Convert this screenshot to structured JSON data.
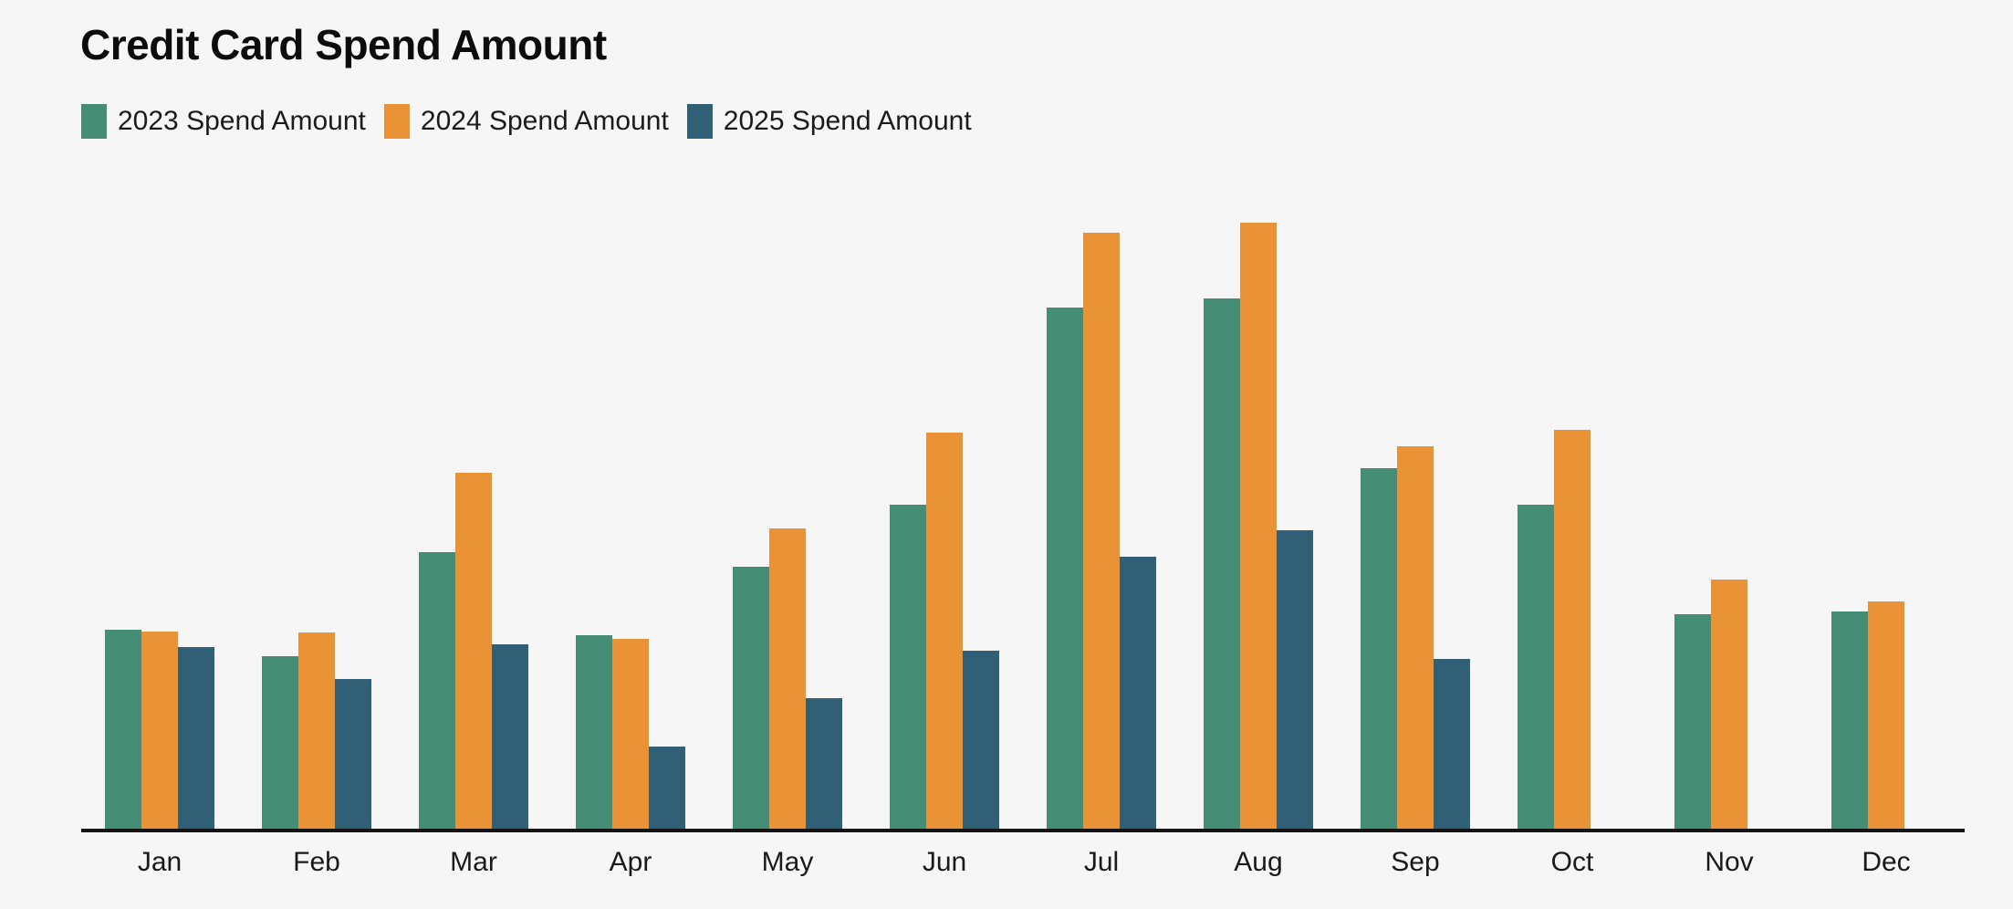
{
  "page": {
    "title": "Credit Card Spend Amount",
    "background_color": "#f6f6f6"
  },
  "chart_data": {
    "type": "bar",
    "title": "Credit Card Spend Amount",
    "categories": [
      "Jan",
      "Feb",
      "Mar",
      "Apr",
      "May",
      "Jun",
      "Jul",
      "Aug",
      "Sep",
      "Oct",
      "Nov",
      "Dec"
    ],
    "series": [
      {
        "name": "2023 Spend Amount",
        "color": "#458E75",
        "values": [
          2180,
          1890,
          3030,
          2120,
          2870,
          3550,
          5710,
          5810,
          3950,
          3550,
          2350,
          2380
        ]
      },
      {
        "name": "2024 Spend Amount",
        "color": "#E99336",
        "values": [
          2160,
          2150,
          3900,
          2080,
          3290,
          4340,
          6530,
          6640,
          4190,
          4370,
          2730,
          2490
        ]
      },
      {
        "name": "2025 Spend Amount",
        "color": "#315F76",
        "values": [
          1990,
          1640,
          2020,
          900,
          1430,
          1950,
          2980,
          3270,
          1860,
          null,
          null,
          null
        ]
      }
    ],
    "xlabel": "",
    "ylabel": "",
    "ylim": [
      0,
      7380
    ],
    "y_axis_visible": false,
    "gridlines": false,
    "legend_position": "top-left",
    "axis_line_color": "#141414",
    "values_note": "no y-axis shown; values estimated in relative spend units"
  }
}
